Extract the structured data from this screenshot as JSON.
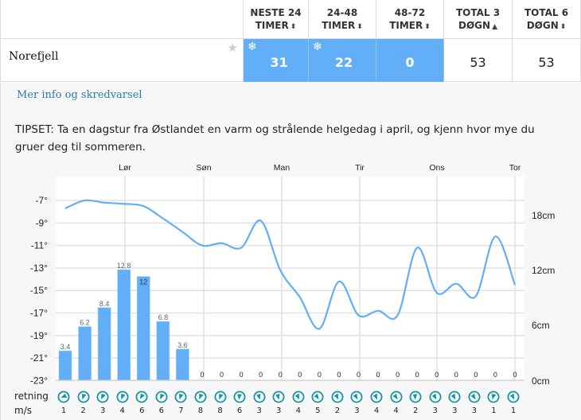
{
  "table": {
    "headers": [
      {
        "line1": "NESTE 24",
        "line2": "TIMER",
        "sort": "both"
      },
      {
        "line1": "24-48",
        "line2": "TIMER",
        "sort": "both"
      },
      {
        "line1": "48-72",
        "line2": "TIMER",
        "sort": "both"
      },
      {
        "line1": "TOTAL 3",
        "line2": "DØGN",
        "sort": "up"
      },
      {
        "line1": "TOTAL 6",
        "line2": "DØGN",
        "sort": "both"
      }
    ],
    "row": {
      "name": "Norefjell",
      "favorite_icon": "star-icon",
      "values": [
        {
          "value": "31",
          "highlight": true,
          "snow_icon": true
        },
        {
          "value": "22",
          "highlight": true,
          "snow_icon": true
        },
        {
          "value": "0",
          "highlight": true,
          "snow_icon": false
        },
        {
          "value": "53",
          "highlight": false,
          "snow_icon": false
        },
        {
          "value": "53",
          "highlight": false,
          "snow_icon": false
        }
      ]
    },
    "highlight_color": "#62aff8"
  },
  "detail": {
    "more_link": "Mer info og skredvarsel",
    "tip": "TIPSET: Ta en dagstur fra Østlandet en varm og strålende helgedag i april, og kjenn hvor mye du gruer deg til sommeren."
  },
  "chart_data": {
    "type": "bar+line",
    "day_labels": [
      "Lør",
      "Søn",
      "Man",
      "Tir",
      "Ons",
      "Tor"
    ],
    "left_axis": {
      "label": "temperature",
      "ticks": [
        "-7°",
        "-9°",
        "-11°",
        "-13°",
        "-15°",
        "-17°",
        "-19°",
        "-21°",
        "-23°"
      ],
      "range": [
        -23,
        -5
      ]
    },
    "right_axis": {
      "label": "snow",
      "ticks": [
        "18cm",
        "12cm",
        "6cm",
        "0cm"
      ],
      "range": [
        0,
        22
      ]
    },
    "snow_bars": [
      3.4,
      6.2,
      8.4,
      12.8,
      12,
      6.8,
      3.6,
      0,
      0,
      0,
      0,
      0,
      0,
      0,
      0,
      0,
      0,
      0,
      0,
      0,
      0,
      0,
      0,
      0
    ],
    "snow_bar_labels": [
      "3.4",
      "6.2",
      "8.4",
      "12.8",
      "12",
      "6.8",
      "3.6",
      "0",
      "0",
      "0",
      "0",
      "0",
      "0",
      "0",
      "0",
      "0",
      "0",
      "0",
      "0",
      "0",
      "0",
      "0",
      "0",
      "0"
    ],
    "temperature": [
      -7.7,
      -7.0,
      -7.2,
      -7.3,
      -7.5,
      -8.6,
      -9.8,
      -11.0,
      -10.8,
      -11.2,
      -8.8,
      -13.2,
      -15.6,
      -18.4,
      -14.2,
      -17.2,
      -16.8,
      -17.2,
      -11.2,
      -15.2,
      -14.4,
      -15.5,
      -10.2,
      -14.5
    ],
    "series_color": "#62aff8",
    "grid": true
  },
  "wind": {
    "direction_label": "retning",
    "speed_label": "m/s",
    "icon": "wind-direction-icon",
    "color": "#1795a8",
    "rotations": [
      60,
      10,
      20,
      15,
      25,
      20,
      10,
      15,
      15,
      0,
      -20,
      -20,
      -30,
      -40,
      -30,
      -35,
      -30,
      -40,
      -10,
      -35,
      -35,
      -40,
      10,
      -30
    ],
    "speeds": [
      "1",
      "2",
      "3",
      "4",
      "6",
      "6",
      "7",
      "8",
      "8",
      "6",
      "3",
      "3",
      "4",
      "5",
      "2",
      "3",
      "4",
      "4",
      "2",
      "3",
      "3",
      "3",
      "1",
      "1"
    ]
  }
}
